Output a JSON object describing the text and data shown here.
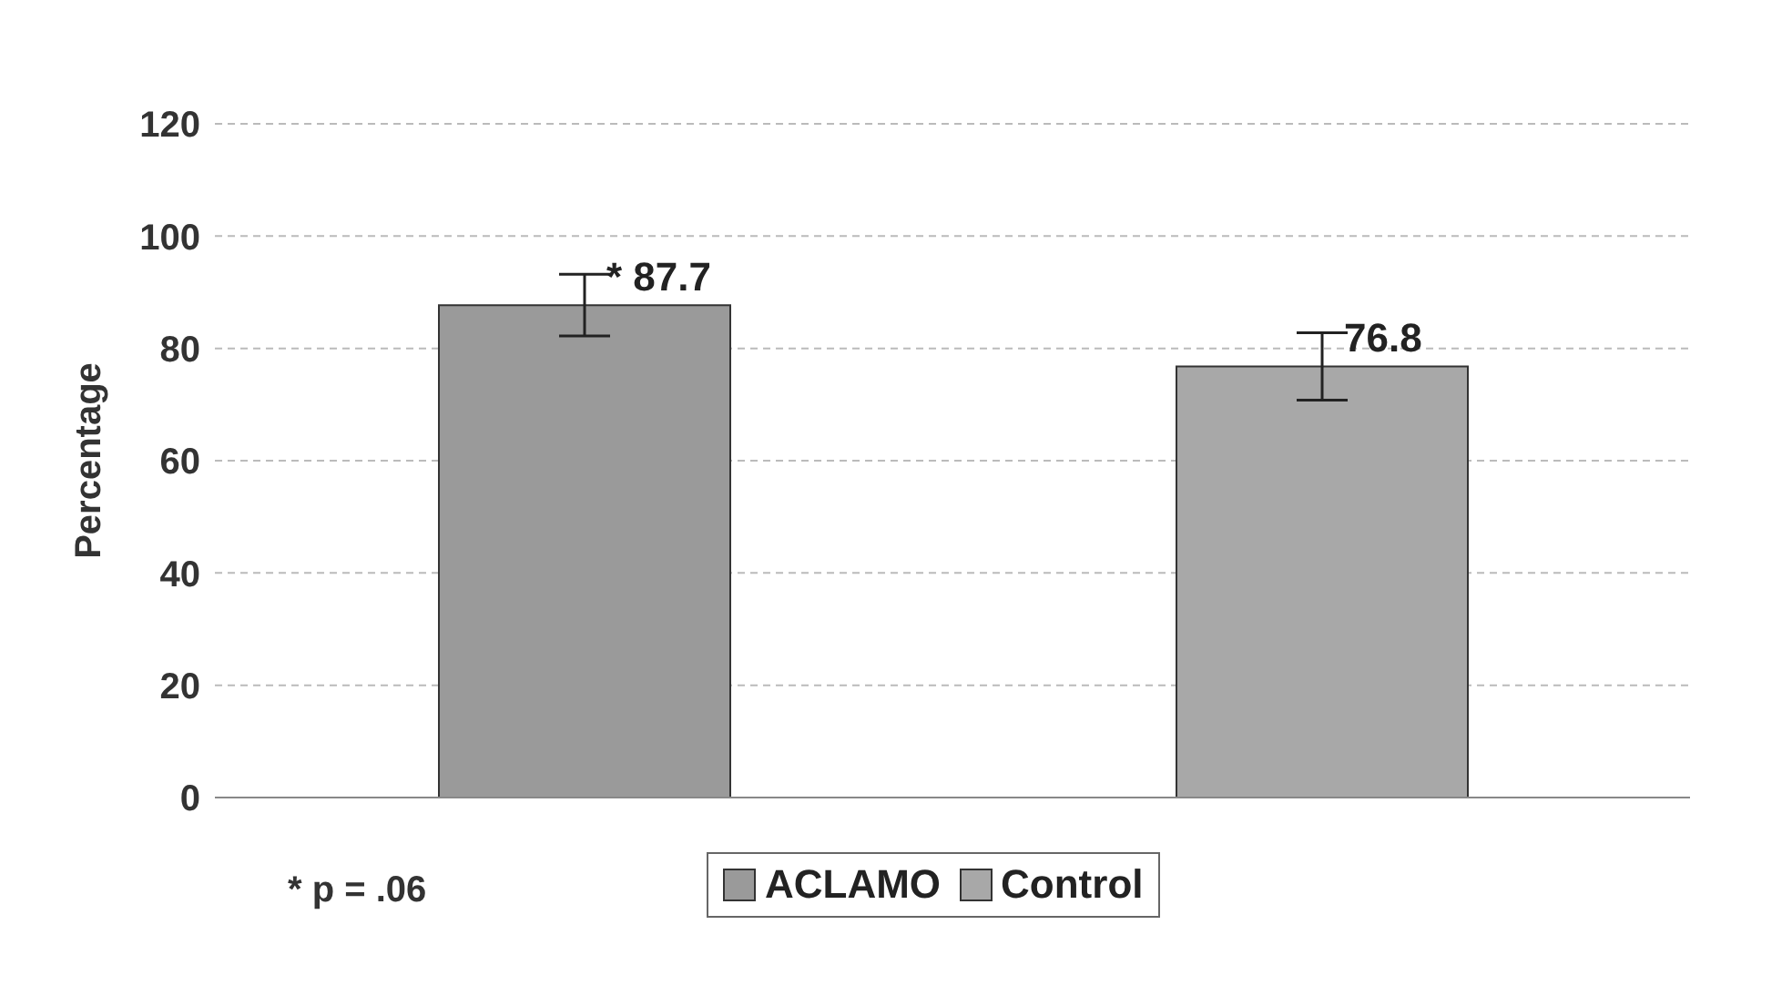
{
  "chart_data": {
    "type": "bar",
    "ylabel": "Percentage",
    "categories": [
      null,
      null
    ],
    "series": [
      {
        "name": "ACLAMO",
        "color": "#9a9a9a",
        "values": [
          87.7,
          null
        ],
        "errors": [
          5.5,
          null
        ],
        "value_labels": [
          "* 87.7",
          null
        ]
      },
      {
        "name": "Control",
        "color": "#a8a8a8",
        "values": [
          null,
          76.8
        ],
        "errors": [
          null,
          6
        ],
        "value_labels": [
          null,
          "76.8"
        ]
      }
    ],
    "ylim": [
      0,
      120
    ],
    "yticks": [
      0,
      20,
      40,
      60,
      80,
      100,
      120
    ],
    "grid": "y",
    "legend": "bottom",
    "annotations": [
      "* p = .06"
    ]
  }
}
